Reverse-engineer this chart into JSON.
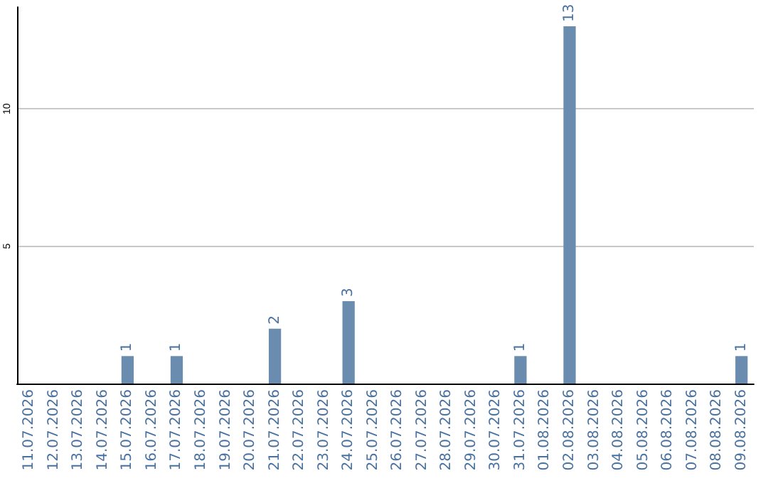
{
  "chart_data": {
    "type": "bar",
    "categories": [
      "11.07.2026",
      "12.07.2026",
      "13.07.2026",
      "14.07.2026",
      "15.07.2026",
      "16.07.2026",
      "17.07.2026",
      "18.07.2026",
      "19.07.2026",
      "20.07.2026",
      "21.07.2026",
      "22.07.2026",
      "23.07.2026",
      "24.07.2026",
      "25.07.2026",
      "26.07.2026",
      "27.07.2026",
      "28.07.2026",
      "29.07.2026",
      "30.07.2026",
      "31.07.2026",
      "01.08.2026",
      "02.08.2026",
      "03.08.2026",
      "04.08.2026",
      "05.08.2026",
      "06.08.2026",
      "07.08.2026",
      "08.08.2026",
      "09.08.2026"
    ],
    "values": [
      0,
      0,
      0,
      0,
      1,
      0,
      1,
      0,
      0,
      0,
      2,
      0,
      0,
      3,
      0,
      0,
      0,
      0,
      0,
      0,
      1,
      0,
      13,
      0,
      0,
      0,
      0,
      0,
      0,
      1
    ],
    "value_labels": [
      null,
      null,
      null,
      null,
      "1",
      null,
      "1",
      null,
      null,
      null,
      "2",
      null,
      null,
      "3",
      null,
      null,
      null,
      null,
      null,
      null,
      "1",
      null,
      "13",
      null,
      null,
      null,
      null,
      null,
      null,
      "1"
    ],
    "color": "#6a8caf",
    "ylim": [
      0,
      13.7
    ],
    "yticks": [
      {
        "value": 0,
        "label": null
      },
      5,
      10
    ],
    "grid": "y"
  }
}
